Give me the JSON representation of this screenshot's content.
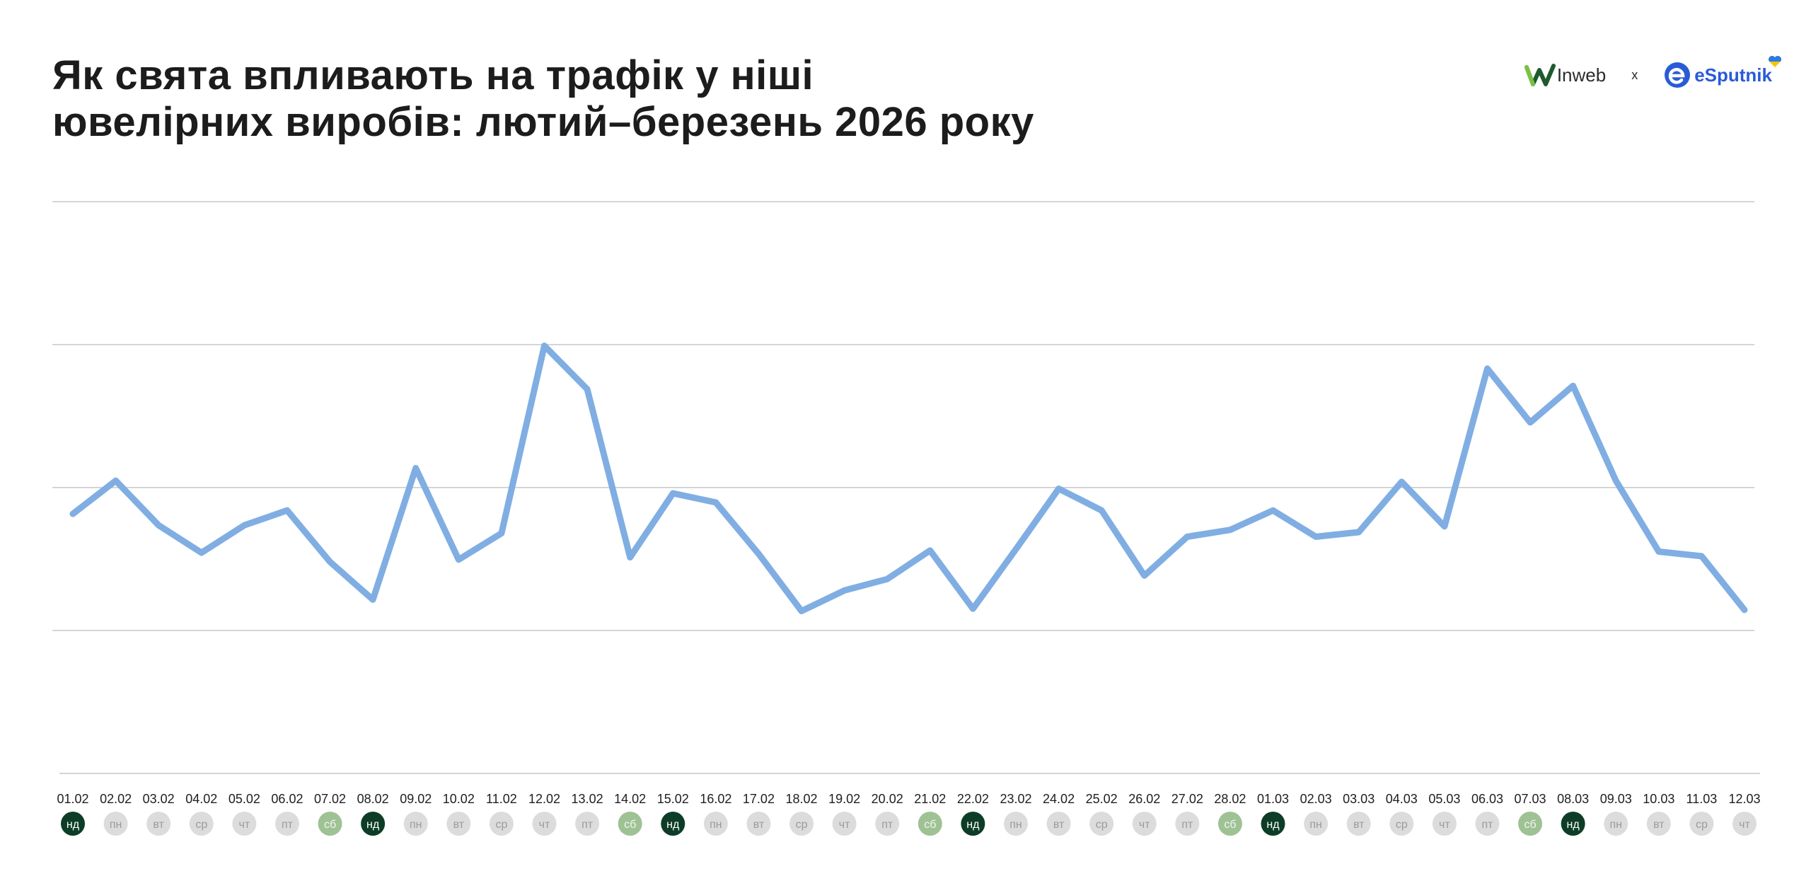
{
  "header": {
    "title_line1": "Як свята впливають на трафік у ніші",
    "title_line2": "ювелірних виробів: лютий–березень 2026 року"
  },
  "logos": {
    "inweb": "Inweb",
    "separator": "x",
    "esputnik": "eSputnik"
  },
  "colors": {
    "line": "#80aee3",
    "sunday": "#0e3d27",
    "saturday": "#9ec294",
    "weekday": "#dcdcdc",
    "grid": "#d5d5d5",
    "logo_blue": "#2a5bd7",
    "logo_green": "#7ac143"
  },
  "chart_data": {
    "type": "line",
    "title": "",
    "xlabel": "",
    "ylabel": "",
    "grid": true,
    "y_tick_labels_shown": false,
    "categories": [
      "01.02",
      "02.02",
      "03.02",
      "04.02",
      "05.02",
      "06.02",
      "07.02",
      "08.02",
      "09.02",
      "10.02",
      "11.02",
      "12.02",
      "13.02",
      "14.02",
      "15.02",
      "16.02",
      "17.02",
      "18.02",
      "19.02",
      "20.02",
      "21.02",
      "22.02",
      "23.02",
      "24.02",
      "25.02",
      "26.02",
      "27.02",
      "28.02",
      "01.03",
      "02.03",
      "03.03",
      "04.03",
      "05.03",
      "06.03",
      "07.03",
      "08.03",
      "09.03",
      "10.03",
      "11.03",
      "12.03"
    ],
    "weekdays": [
      "нд",
      "пн",
      "вт",
      "ср",
      "чт",
      "пт",
      "сб",
      "нд",
      "пн",
      "вт",
      "ср",
      "чт",
      "пт",
      "сб",
      "нд",
      "пн",
      "вт",
      "ср",
      "чт",
      "пт",
      "сб",
      "нд",
      "пн",
      "вт",
      "ср",
      "чт",
      "пт",
      "сб",
      "нд",
      "пн",
      "вт",
      "ср",
      "чт",
      "пт",
      "сб",
      "нд",
      "пн",
      "вт",
      "ср",
      "чт"
    ],
    "series": [
      {
        "values": [
          2.27,
          2.56,
          2.17,
          1.93,
          2.17,
          2.3,
          1.85,
          1.52,
          2.67,
          1.87,
          2.1,
          3.74,
          3.36,
          1.89,
          2.45,
          2.37,
          1.92,
          1.42,
          1.6,
          1.7,
          1.95,
          1.44,
          1.96,
          2.49,
          2.3,
          1.73,
          2.07,
          2.13,
          2.3,
          2.07,
          2.11,
          2.55,
          2.16,
          3.54,
          3.07,
          3.39,
          2.56,
          1.94,
          1.9,
          1.43
        ]
      }
    ]
  }
}
